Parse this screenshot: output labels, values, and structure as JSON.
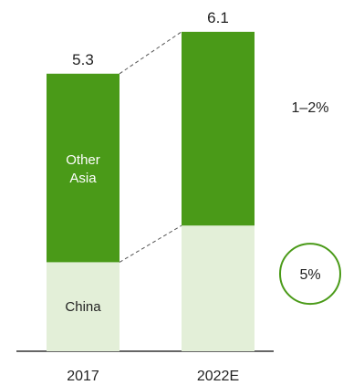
{
  "chart_data": {
    "type": "bar",
    "stacked": true,
    "categories": [
      "2017",
      "2022E"
    ],
    "series": [
      {
        "name": "China",
        "values": [
          1.7,
          2.4
        ],
        "color": "#e3efd8"
      },
      {
        "name": "Other Asia",
        "values": [
          3.6,
          3.7
        ],
        "color": "#4a9a18"
      }
    ],
    "totals": [
      "5.3",
      "6.1"
    ],
    "segment_labels": {
      "China": "China",
      "Other Asia": [
        "Other",
        "Asia"
      ]
    },
    "growth_annotations": [
      {
        "series": "Other Asia",
        "text": "1–2%",
        "circled": false
      },
      {
        "series": "China",
        "text": "5%",
        "circled": true
      }
    ],
    "colors": {
      "circle": "#4a9a18",
      "connector": "#555555",
      "baseline": "#333333"
    }
  }
}
